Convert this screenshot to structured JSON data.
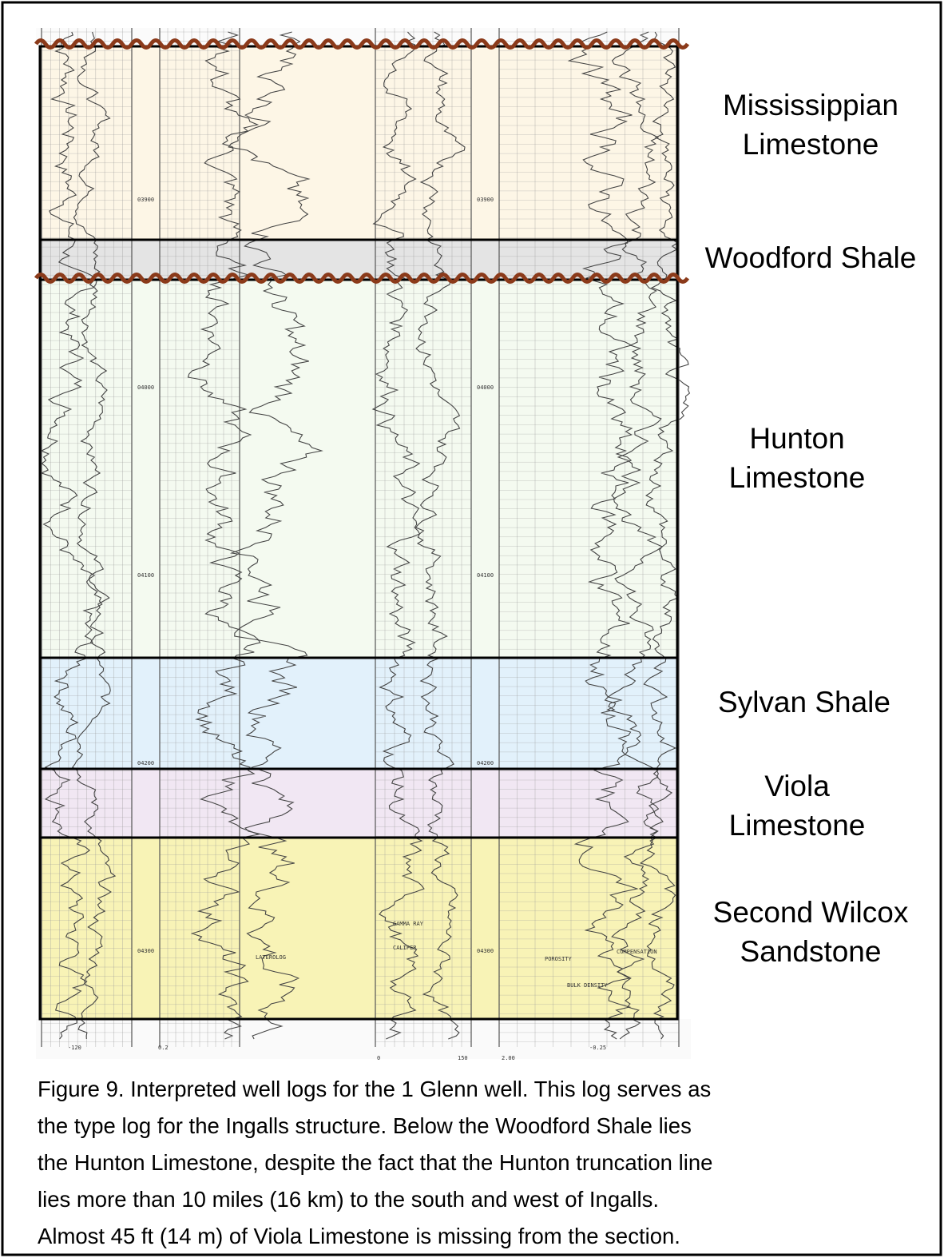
{
  "zones": [
    {
      "label": "Mississippian\nLimestone"
    },
    {
      "label": "Woodford Shale"
    },
    {
      "label": "Hunton\nLimestone"
    },
    {
      "label": "Sylvan Shale"
    },
    {
      "label": "Viola\nLimestone"
    },
    {
      "label": "Second Wilcox\nSandstone"
    }
  ],
  "depth_marks": [
    "03900",
    "04000",
    "04100",
    "04200",
    "04300"
  ],
  "curve_labels": [
    "LATEROLOG",
    "GAMMA RAY",
    "CALIPER",
    "POROSITY",
    "COMPENSATION",
    "BULK DENSITY"
  ],
  "scale_labels": [
    "-120",
    "0.2",
    "0",
    "150",
    "2.00",
    "-0.25"
  ],
  "caption": {
    "lines": [
      "Figure 9. Interpreted well logs for the 1 Glenn well. This log serves as",
      "the type log for the Ingalls structure. Below the Woodford Shale lies",
      "the Hunton Limestone, despite the fact that the Hunton truncation line",
      "lies more than 10 miles (16 km) to the south and west of Ingalls.",
      "Almost 45 ft (14 m) of Viola Limestone is missing from the section."
    ]
  }
}
